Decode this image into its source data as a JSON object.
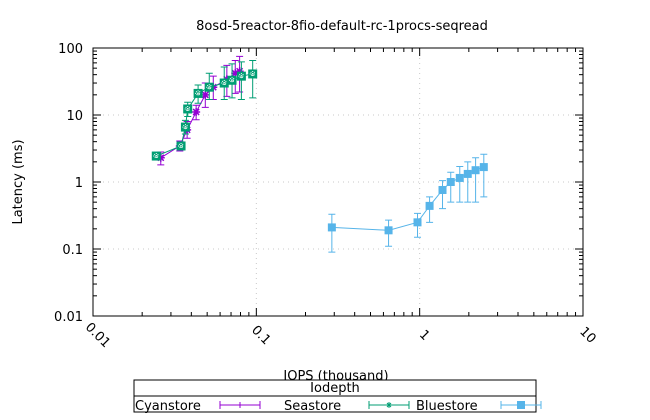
{
  "chart_data": {
    "type": "line",
    "title": "8osd-5reactor-8fio-default-rc-1procs-seqread",
    "xlabel": "IOPS (thousand)",
    "ylabel": "Latency (ms)",
    "xscale": "log",
    "yscale": "log",
    "xlim": [
      0.01,
      10
    ],
    "ylim": [
      0.01,
      100
    ],
    "xticks": [
      "0.01",
      "0.1",
      "1",
      "10"
    ],
    "yticks": [
      "0.01",
      "0.1",
      "1",
      "10",
      "100"
    ],
    "grid": true,
    "legend": {
      "title": "Iodepth",
      "placement": "bottom-center"
    },
    "series": [
      {
        "name": "Cyanstore",
        "color": "#9400d3",
        "marker": "plus",
        "x": [
          0.026,
          0.034,
          0.0377,
          0.0428,
          0.0487,
          0.0545,
          0.066,
          0.0743,
          0.079
        ],
        "y": [
          2.3,
          3.45,
          6.0,
          11.1,
          20,
          26,
          34,
          42,
          45
        ],
        "ylow": [
          1.8,
          2.9,
          4.5,
          8.5,
          13,
          17,
          19,
          21,
          22
        ],
        "yhigh": [
          2.8,
          4.1,
          8.0,
          14,
          30,
          38,
          55,
          65,
          75
        ]
      },
      {
        "name": "Seastore",
        "color": "#009e73",
        "marker": "star",
        "x": [
          0.0244,
          0.0346,
          0.0368,
          0.038,
          0.044,
          0.0515,
          0.0636,
          0.071,
          0.081,
          0.095
        ],
        "y": [
          2.44,
          3.45,
          6.6,
          12.3,
          21,
          26,
          30,
          33,
          38,
          41
        ],
        "ylow": [
          2.2,
          3.0,
          5.2,
          9.5,
          15,
          17,
          17,
          18,
          17,
          18
        ],
        "yhigh": [
          2.7,
          3.9,
          8.3,
          15.5,
          28,
          42,
          52,
          58,
          62,
          65
        ]
      },
      {
        "name": "Bluestore",
        "color": "#56b4e9",
        "marker": "square",
        "x": [
          0.29,
          0.645,
          0.97,
          1.15,
          1.38,
          1.55,
          1.76,
          1.97,
          2.2,
          2.47
        ],
        "y": [
          0.21,
          0.19,
          0.25,
          0.44,
          0.76,
          1.0,
          1.15,
          1.32,
          1.5,
          1.67
        ],
        "ylow": [
          0.09,
          0.11,
          0.15,
          0.25,
          0.4,
          0.5,
          0.5,
          0.5,
          0.5,
          0.6
        ],
        "yhigh": [
          0.33,
          0.27,
          0.34,
          0.6,
          1.05,
          1.4,
          1.7,
          2.0,
          2.3,
          2.6
        ]
      }
    ]
  }
}
